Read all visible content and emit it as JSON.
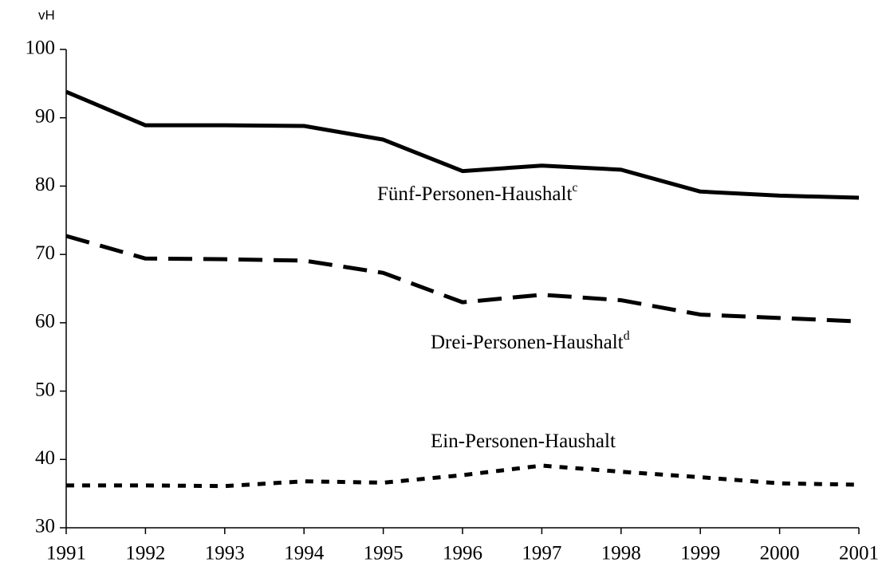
{
  "chart_data": {
    "type": "line",
    "y_label": "vH",
    "x": [
      1991,
      1992,
      1993,
      1994,
      1995,
      1996,
      1997,
      1998,
      1999,
      2000,
      2001
    ],
    "xlim": [
      1991,
      2001
    ],
    "xticks": [
      1991,
      1992,
      1993,
      1994,
      1995,
      1996,
      1997,
      1998,
      1999,
      2000,
      2001
    ],
    "ylim": [
      30,
      100
    ],
    "yticks": [
      30,
      40,
      50,
      60,
      70,
      80,
      90,
      100
    ],
    "grid": false,
    "series": [
      {
        "name": "Fünf-Personen-Haushalt",
        "footnote": "c",
        "color": "#000000",
        "dash": "solid",
        "values": [
          93.8,
          88.9,
          88.9,
          88.8,
          86.8,
          82.2,
          83.0,
          82.4,
          79.2,
          78.6,
          78.3
        ]
      },
      {
        "name": "Drei-Personen-Haushalt",
        "footnote": "d",
        "color": "#000000",
        "dash": "dashed",
        "values": [
          72.7,
          69.4,
          69.3,
          69.1,
          67.3,
          63.0,
          64.1,
          63.3,
          61.2,
          60.7,
          60.2
        ]
      },
      {
        "name": "Ein-Personen-Haushalt",
        "color": "#000000",
        "dash": "dotted",
        "values": [
          36.2,
          36.2,
          36.1,
          36.8,
          36.6,
          37.7,
          39.1,
          38.2,
          37.4,
          36.5,
          36.3
        ]
      }
    ]
  }
}
